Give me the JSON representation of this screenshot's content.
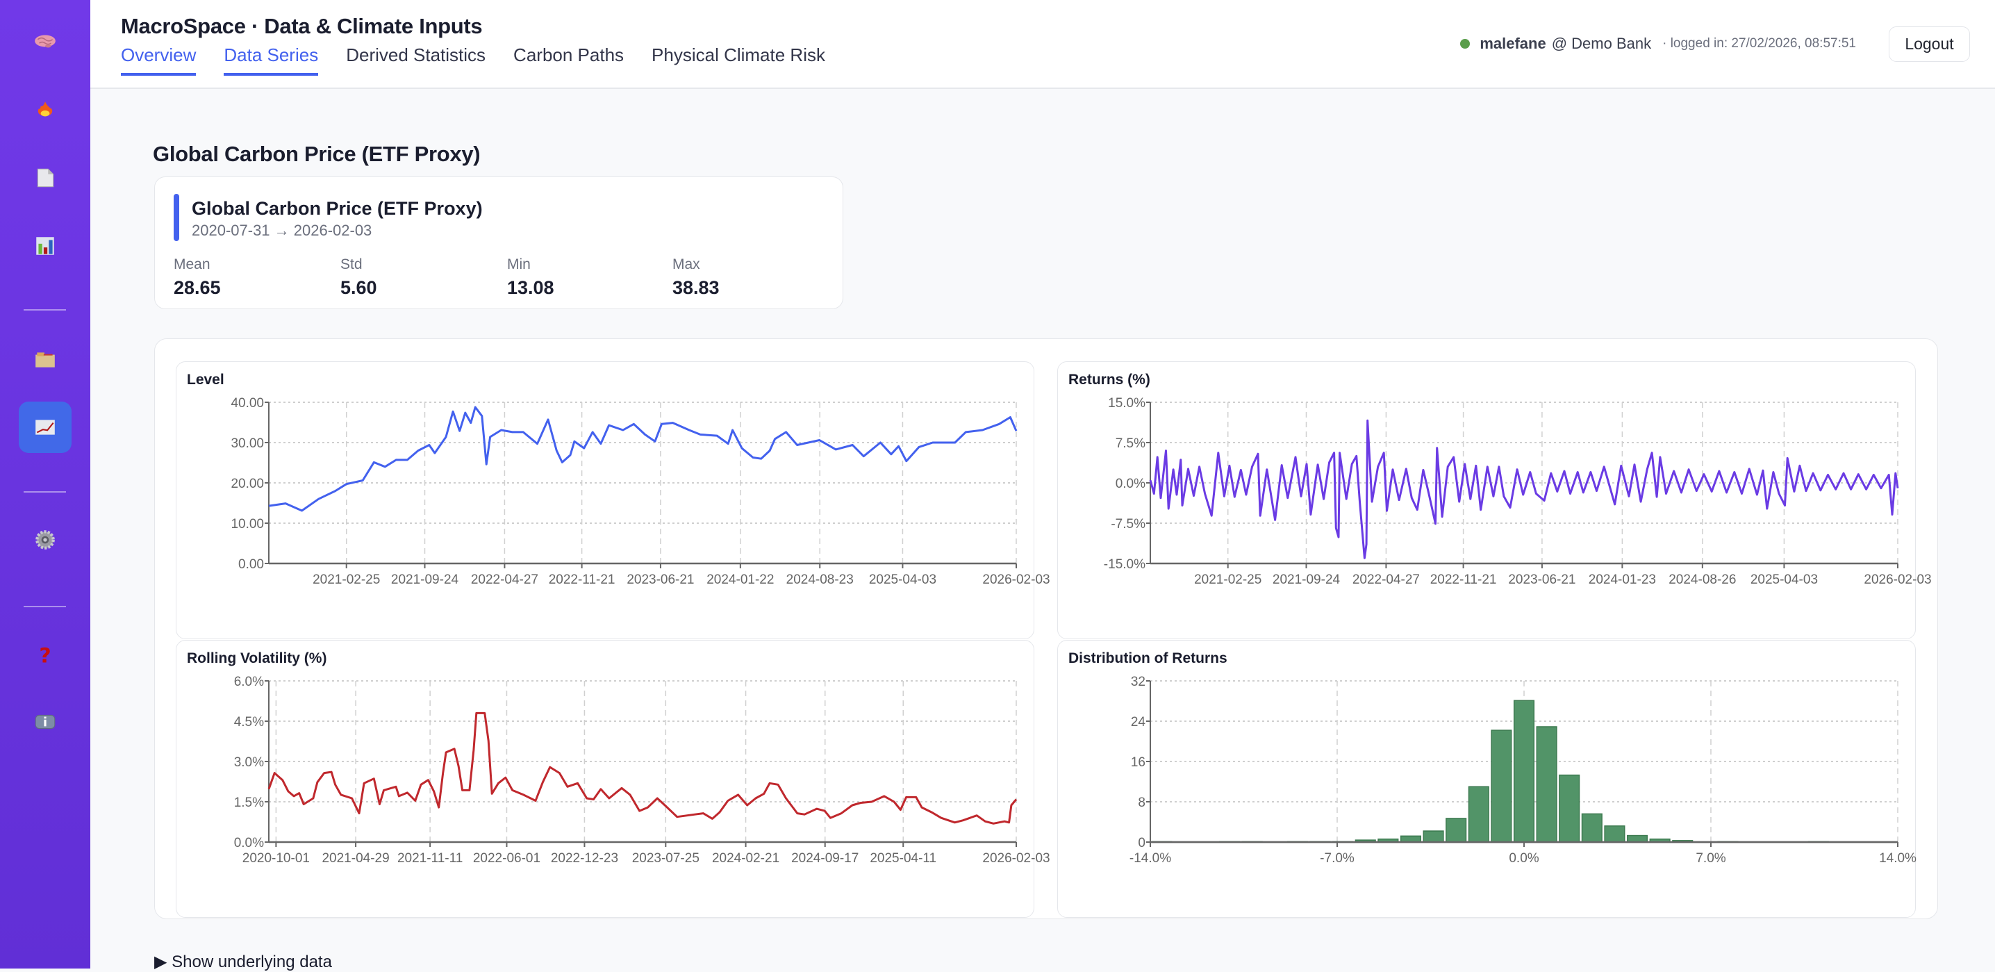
{
  "sidebar": {
    "items": [
      {
        "icon": "brain-icon"
      },
      {
        "icon": "flame-icon"
      },
      {
        "icon": "document-icon"
      },
      {
        "icon": "bar-chart-icon"
      },
      {
        "icon": "folder-icon"
      },
      {
        "icon": "line-chart-icon",
        "active": true
      },
      {
        "icon": "gear-icon"
      },
      {
        "icon": "question-icon"
      },
      {
        "icon": "info-icon"
      }
    ],
    "colors": {
      "background": "#6b35e0",
      "active": "#4169e8"
    }
  },
  "header": {
    "title": "MacroSpace · Data & Climate Inputs",
    "tabs": [
      {
        "label": "Overview",
        "active": true
      },
      {
        "label": "Data Series",
        "active": true
      },
      {
        "label": "Derived Statistics"
      },
      {
        "label": "Carbon Paths"
      },
      {
        "label": "Physical Climate Risk"
      }
    ],
    "user": {
      "name": "malefane",
      "org": "@ Demo Bank",
      "login": "· logged in: 27/02/2026, 08:57:51",
      "status_color": "#5a9e4b"
    },
    "logout_label": "Logout"
  },
  "page": {
    "title": "Global Carbon Price (ETF Proxy)",
    "card": {
      "title": "Global Carbon Price (ETF Proxy)",
      "range": "2020-07-31 → 2026-02-03",
      "stats": [
        {
          "label": "Mean",
          "value": "28.65"
        },
        {
          "label": "Std",
          "value": "5.60"
        },
        {
          "label": "Min",
          "value": "13.08"
        },
        {
          "label": "Max",
          "value": "38.83"
        }
      ]
    },
    "show_data_label": "▶ Show underlying data"
  },
  "chart_data": [
    {
      "type": "line",
      "title": "Level",
      "color": "#4361ee",
      "xlim": [
        "2020-07-31",
        "2026-02-03"
      ],
      "ylim": [
        0,
        40
      ],
      "yticks": [
        "0.00",
        "10.00",
        "20.00",
        "30.00",
        "40.00"
      ],
      "ytick_values": [
        0,
        10,
        20,
        30,
        40
      ],
      "xticks": [
        "2021-02-25",
        "2021-09-24",
        "2022-04-27",
        "2022-11-21",
        "2023-06-21",
        "2024-01-22",
        "2024-08-23",
        "2025-04-03",
        "2026-02-03"
      ],
      "grid": true,
      "x": [
        "2020-07-31",
        "2020-09-14",
        "2020-10-28",
        "2020-12-12",
        "2021-01-26",
        "2021-02-25",
        "2021-04-10",
        "2021-05-10",
        "2021-06-09",
        "2021-07-09",
        "2021-08-08",
        "2021-09-06",
        "2021-10-06",
        "2021-10-21",
        "2021-11-20",
        "2021-12-09",
        "2021-12-27",
        "2022-01-11",
        "2022-01-26",
        "2022-02-07",
        "2022-02-25",
        "2022-03-09",
        "2022-03-19",
        "2022-04-18",
        "2022-05-18",
        "2022-06-16",
        "2022-07-24",
        "2022-08-22",
        "2022-09-14",
        "2022-09-29",
        "2022-10-21",
        "2022-11-01",
        "2022-11-27",
        "2022-12-20",
        "2023-01-11",
        "2023-02-02",
        "2023-03-12",
        "2023-04-10",
        "2023-05-10",
        "2023-06-06",
        "2023-06-24",
        "2023-07-24",
        "2023-09-06",
        "2023-10-06",
        "2023-11-20",
        "2023-12-20",
        "2024-01-01",
        "2024-01-26",
        "2024-02-25",
        "2024-03-18",
        "2024-04-10",
        "2024-04-24",
        "2024-05-24",
        "2024-06-23",
        "2024-08-22",
        "2024-10-05",
        "2024-11-19",
        "2024-12-19",
        "2025-02-02",
        "2025-03-03",
        "2025-03-23",
        "2025-04-13",
        "2025-05-17",
        "2025-06-23",
        "2025-08-22",
        "2025-09-20",
        "2025-11-04",
        "2025-12-19",
        "2026-01-18",
        "2026-02-03"
      ],
      "y": [
        14.3,
        14.9,
        13.1,
        16.0,
        18.0,
        19.7,
        20.6,
        25.1,
        24.0,
        25.7,
        25.7,
        28.0,
        29.4,
        27.4,
        31.4,
        37.7,
        32.9,
        37.4,
        34.9,
        38.8,
        36.6,
        24.6,
        31.4,
        33.1,
        32.6,
        32.6,
        29.7,
        35.7,
        28.0,
        25.1,
        26.9,
        30.3,
        28.6,
        32.6,
        29.7,
        34.3,
        33.1,
        34.6,
        32.0,
        30.3,
        34.6,
        34.9,
        33.1,
        32.0,
        31.7,
        29.7,
        33.1,
        28.6,
        26.3,
        26.0,
        28.0,
        30.9,
        32.6,
        29.4,
        30.6,
        28.3,
        29.4,
        26.6,
        30.0,
        27.1,
        29.1,
        25.4,
        28.9,
        30.0,
        30.0,
        32.6,
        33.1,
        34.6,
        36.3,
        32.9
      ]
    },
    {
      "type": "line",
      "title": "Returns (%)",
      "color": "#6a3be4",
      "xlim": [
        "2020-07-31",
        "2026-02-03"
      ],
      "ylim": [
        -15,
        15
      ],
      "yticks": [
        "-15.0%",
        "-7.5%",
        "0.0%",
        "7.5%",
        "15.0%"
      ],
      "ytick_values": [
        -15,
        -7.5,
        0,
        7.5,
        15
      ],
      "xticks": [
        "2021-02-25",
        "2021-09-24",
        "2022-04-27",
        "2022-11-21",
        "2023-06-21",
        "2024-01-23",
        "2024-08-26",
        "2025-04-03",
        "2026-02-03"
      ],
      "grid": true,
      "x": [
        "2020-07-31",
        "2020-08-10",
        "2020-08-19",
        "2020-08-28",
        "2020-09-11",
        "2020-09-18",
        "2020-10-01",
        "2020-10-10",
        "2020-10-21",
        "2020-10-25",
        "2020-11-10",
        "2020-11-25",
        "2020-12-10",
        "2020-12-25",
        "2021-01-12",
        "2021-01-30",
        "2021-02-15",
        "2021-03-01",
        "2021-03-15",
        "2021-04-01",
        "2021-04-15",
        "2021-05-01",
        "2021-05-17",
        "2021-05-23",
        "2021-06-10",
        "2021-07-02",
        "2021-07-20",
        "2021-08-05",
        "2021-08-26",
        "2021-09-10",
        "2021-09-25",
        "2021-10-06",
        "2021-10-25",
        "2021-11-10",
        "2021-11-25",
        "2021-12-08",
        "2021-12-13",
        "2021-12-20",
        "2021-12-23",
        "2022-01-10",
        "2022-01-25",
        "2022-02-06",
        "2022-02-15",
        "2022-02-28",
        "2022-03-05",
        "2022-03-08",
        "2022-03-20",
        "2022-04-05",
        "2022-04-21",
        "2022-04-29",
        "2022-05-15",
        "2022-06-01",
        "2022-06-20",
        "2022-07-05",
        "2022-07-20",
        "2022-08-05",
        "2022-08-20",
        "2022-09-07",
        "2022-09-11",
        "2022-09-25",
        "2022-10-10",
        "2022-10-26",
        "2022-11-10",
        "2022-11-25",
        "2022-12-10",
        "2022-12-25",
        "2023-01-07",
        "2023-01-25",
        "2023-02-10",
        "2023-02-25",
        "2023-03-10",
        "2023-03-27",
        "2023-04-15",
        "2023-05-01",
        "2023-05-20",
        "2023-06-05",
        "2023-06-27",
        "2023-07-15",
        "2023-08-01",
        "2023-08-20",
        "2023-09-05",
        "2023-09-25",
        "2023-10-10",
        "2023-10-30",
        "2023-11-15",
        "2023-12-05",
        "2024-01-03",
        "2024-01-20",
        "2024-02-10",
        "2024-02-25",
        "2024-03-13",
        "2024-03-30",
        "2024-04-12",
        "2024-04-25",
        "2024-05-04",
        "2024-05-20",
        "2024-06-10",
        "2024-06-30",
        "2024-07-20",
        "2024-08-10",
        "2024-08-30",
        "2024-09-20",
        "2024-10-10",
        "2024-10-30",
        "2024-11-20",
        "2024-12-10",
        "2024-12-30",
        "2025-01-20",
        "2025-02-05",
        "2025-02-16",
        "2025-03-05",
        "2025-03-20",
        "2025-04-05",
        "2025-04-12",
        "2025-04-30",
        "2025-05-15",
        "2025-06-01",
        "2025-06-20",
        "2025-07-10",
        "2025-07-30",
        "2025-08-20",
        "2025-09-10",
        "2025-09-30",
        "2025-10-20",
        "2025-11-10",
        "2025-11-30",
        "2025-12-20",
        "2026-01-10",
        "2026-01-19",
        "2026-01-28",
        "2026-02-03"
      ],
      "y": [
        0.5,
        -2.0,
        4.8,
        -2.8,
        6.0,
        -4.8,
        2.5,
        -2.2,
        4.3,
        -4.2,
        2.6,
        -2.4,
        3.0,
        -2.0,
        -6.1,
        5.6,
        -2.5,
        3.2,
        -2.6,
        2.4,
        -2.2,
        3.0,
        5.4,
        -6.1,
        2.5,
        -6.9,
        3.3,
        -2.8,
        4.8,
        -2.5,
        3.5,
        -5.9,
        3.4,
        -3.0,
        3.8,
        5.6,
        -8.4,
        -10.1,
        5.6,
        -3.0,
        3.5,
        5.0,
        -3.5,
        -14.0,
        -11.4,
        11.6,
        -3.5,
        3.0,
        5.6,
        -5.2,
        2.5,
        -3.2,
        2.6,
        -2.8,
        -5.0,
        2.4,
        -2.0,
        -7.6,
        6.5,
        -6.3,
        3.0,
        4.8,
        -3.5,
        3.5,
        -3.0,
        3.2,
        -5.0,
        3.0,
        -2.5,
        3.0,
        -2.5,
        -4.6,
        2.5,
        -2.2,
        2.0,
        -2.0,
        -3.3,
        1.8,
        -1.6,
        2.2,
        -2.0,
        2.0,
        -1.8,
        2.0,
        -1.5,
        3.0,
        -4.0,
        3.2,
        -2.5,
        3.4,
        -3.5,
        2.5,
        5.6,
        -2.6,
        4.8,
        -2.0,
        2.2,
        -1.8,
        2.5,
        -1.5,
        1.6,
        -1.6,
        2.2,
        -1.8,
        2.0,
        -2.0,
        2.6,
        -2.2,
        2.3,
        -4.8,
        2.0,
        -2.0,
        -4.2,
        4.6,
        -1.6,
        3.2,
        -1.5,
        1.8,
        -1.4,
        1.5,
        -1.2,
        1.8,
        -1.2,
        1.6,
        -1.2,
        1.5,
        -1.0,
        1.5,
        -5.9,
        1.8,
        -1.0
      ]
    },
    {
      "type": "line",
      "title": "Rolling Volatility (%)",
      "color": "#c0282d",
      "xlim": [
        "2020-09-12",
        "2026-02-03"
      ],
      "ylim": [
        0,
        6
      ],
      "yticks": [
        "0.0%",
        "1.5%",
        "3.0%",
        "4.5%",
        "6.0%"
      ],
      "ytick_values": [
        0,
        1.5,
        3,
        4.5,
        6
      ],
      "xticks": [
        "2020-10-01",
        "2021-04-29",
        "2021-11-11",
        "2022-06-01",
        "2022-12-23",
        "2023-07-25",
        "2024-02-21",
        "2024-09-17",
        "2025-04-11",
        "2026-02-03"
      ],
      "grid": true,
      "x": [
        "2020-09-12",
        "2020-09-27",
        "2020-10-18",
        "2020-11-02",
        "2020-11-17",
        "2020-12-01",
        "2020-12-13",
        "2021-01-07",
        "2021-01-18",
        "2021-02-05",
        "2021-02-24",
        "2021-03-06",
        "2021-03-21",
        "2021-04-19",
        "2021-05-08",
        "2021-05-21",
        "2021-06-16",
        "2021-07-01",
        "2021-07-12",
        "2021-08-13",
        "2021-08-21",
        "2021-09-12",
        "2021-10-03",
        "2021-10-18",
        "2021-11-06",
        "2021-11-21",
        "2021-12-04",
        "2021-12-15",
        "2021-12-23",
        "2022-01-14",
        "2022-01-25",
        "2022-02-04",
        "2022-02-23",
        "2022-03-06",
        "2022-03-13",
        "2022-04-04",
        "2022-04-14",
        "2022-04-23",
        "2022-05-10",
        "2022-05-29",
        "2022-06-16",
        "2022-07-15",
        "2022-08-16",
        "2022-09-04",
        "2022-09-23",
        "2022-10-18",
        "2022-11-08",
        "2022-12-05",
        "2022-12-29",
        "2023-01-16",
        "2023-02-04",
        "2023-02-26",
        "2023-03-31",
        "2023-04-22",
        "2023-05-17",
        "2023-06-08",
        "2023-07-03",
        "2023-07-26",
        "2023-08-24",
        "2023-10-10",
        "2023-11-01",
        "2023-11-25",
        "2023-12-14",
        "2024-01-05",
        "2024-02-01",
        "2024-02-25",
        "2024-03-18",
        "2024-04-09",
        "2024-04-24",
        "2024-05-16",
        "2024-06-06",
        "2024-07-06",
        "2024-07-25",
        "2024-08-26",
        "2024-09-16",
        "2024-10-01",
        "2024-10-30",
        "2024-11-28",
        "2024-12-20",
        "2025-01-18",
        "2025-02-20",
        "2025-03-18",
        "2025-04-04",
        "2025-04-19",
        "2025-05-15",
        "2025-05-30",
        "2025-06-25",
        "2025-07-20",
        "2025-08-25",
        "2025-09-16",
        "2025-10-22",
        "2025-11-13",
        "2025-12-05",
        "2026-01-03",
        "2026-01-15",
        "2026-01-21",
        "2026-02-03"
      ],
      "y": [
        1.97,
        2.57,
        2.31,
        1.89,
        1.71,
        1.82,
        1.41,
        1.63,
        2.23,
        2.57,
        2.61,
        2.14,
        1.76,
        1.63,
        1.07,
        2.19,
        2.36,
        1.41,
        1.93,
        2.06,
        1.71,
        1.84,
        1.54,
        2.14,
        2.31,
        1.89,
        1.29,
        2.57,
        3.34,
        3.47,
        2.83,
        1.93,
        1.93,
        3.43,
        4.8,
        4.8,
        3.77,
        1.8,
        2.19,
        2.4,
        1.93,
        1.76,
        1.54,
        2.23,
        2.79,
        2.57,
        2.06,
        2.19,
        1.63,
        1.59,
        1.97,
        1.63,
        2.01,
        1.76,
        1.16,
        1.29,
        1.63,
        1.33,
        0.94,
        1.03,
        1.07,
        0.87,
        1.11,
        1.54,
        1.76,
        1.37,
        1.63,
        1.8,
        2.19,
        2.14,
        1.63,
        1.07,
        1.03,
        1.24,
        1.16,
        0.9,
        1.07,
        1.37,
        1.46,
        1.5,
        1.71,
        1.5,
        1.2,
        1.67,
        1.67,
        1.29,
        1.11,
        0.9,
        0.73,
        0.81,
        0.99,
        0.77,
        0.69,
        0.77,
        0.73,
        1.37,
        1.59
      ]
    },
    {
      "type": "bar",
      "title": "Distribution of Returns",
      "color": "#529468",
      "xlim": [
        -14,
        14
      ],
      "ylim": [
        0,
        32
      ],
      "xticks": [
        "-14.0%",
        "-7.0%",
        "0.0%",
        "7.0%",
        "14.0%"
      ],
      "xtick_values": [
        -14,
        -7,
        0,
        7,
        14
      ],
      "yticks": [
        "0",
        "8",
        "16",
        "24",
        "32"
      ],
      "ytick_values": [
        0,
        8,
        16,
        24,
        32
      ],
      "grid": true,
      "bin_count": 33,
      "values": [
        0.1,
        0,
        0,
        0.1,
        0.1,
        0,
        0.1,
        0.1,
        0.1,
        0.4,
        0.6,
        1.2,
        2.2,
        4.7,
        11.0,
        22.2,
        28.1,
        22.9,
        13.3,
        5.6,
        3.2,
        1.3,
        0.6,
        0.3,
        0,
        0.1,
        0,
        0,
        0,
        0.1,
        0,
        0,
        0
      ]
    }
  ]
}
